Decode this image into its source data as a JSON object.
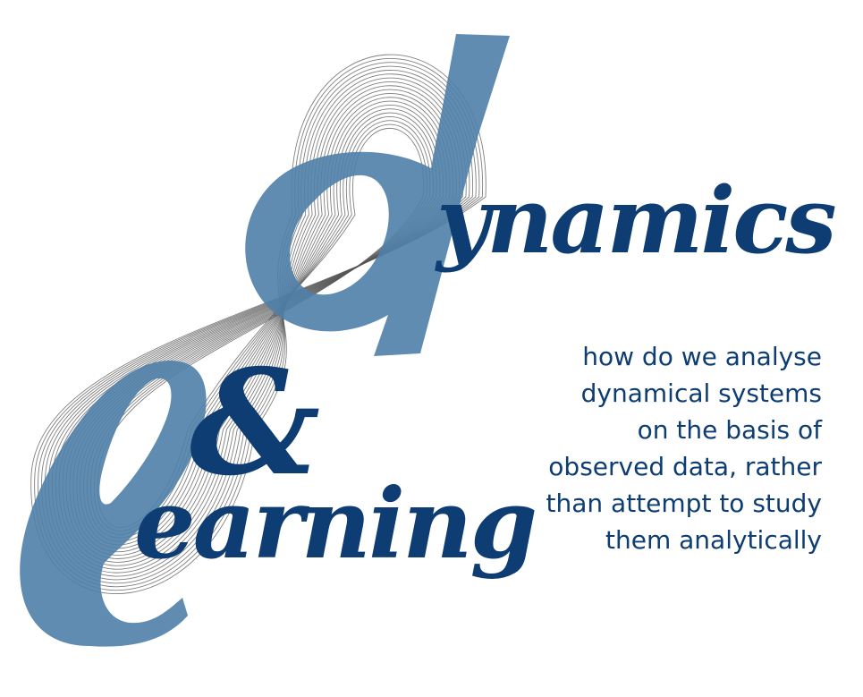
{
  "title": {
    "initial_d": "d",
    "initial_l": "l",
    "word_dynamics": "ynamics",
    "ampersand": "&",
    "word_learning": "earning"
  },
  "tagline": {
    "lines": [
      "how do we analyse",
      "dynamical systems",
      "on the basis of",
      "observed data, rather",
      "than attempt to study",
      "them analytically"
    ]
  },
  "colors": {
    "navy": "#0d3d72",
    "steel_blue": "#4f7fa8",
    "trajectory_gray": "#555555",
    "background": "#ffffff"
  },
  "graphic": {
    "motif": "attractor-trajectory",
    "loops": 20
  }
}
